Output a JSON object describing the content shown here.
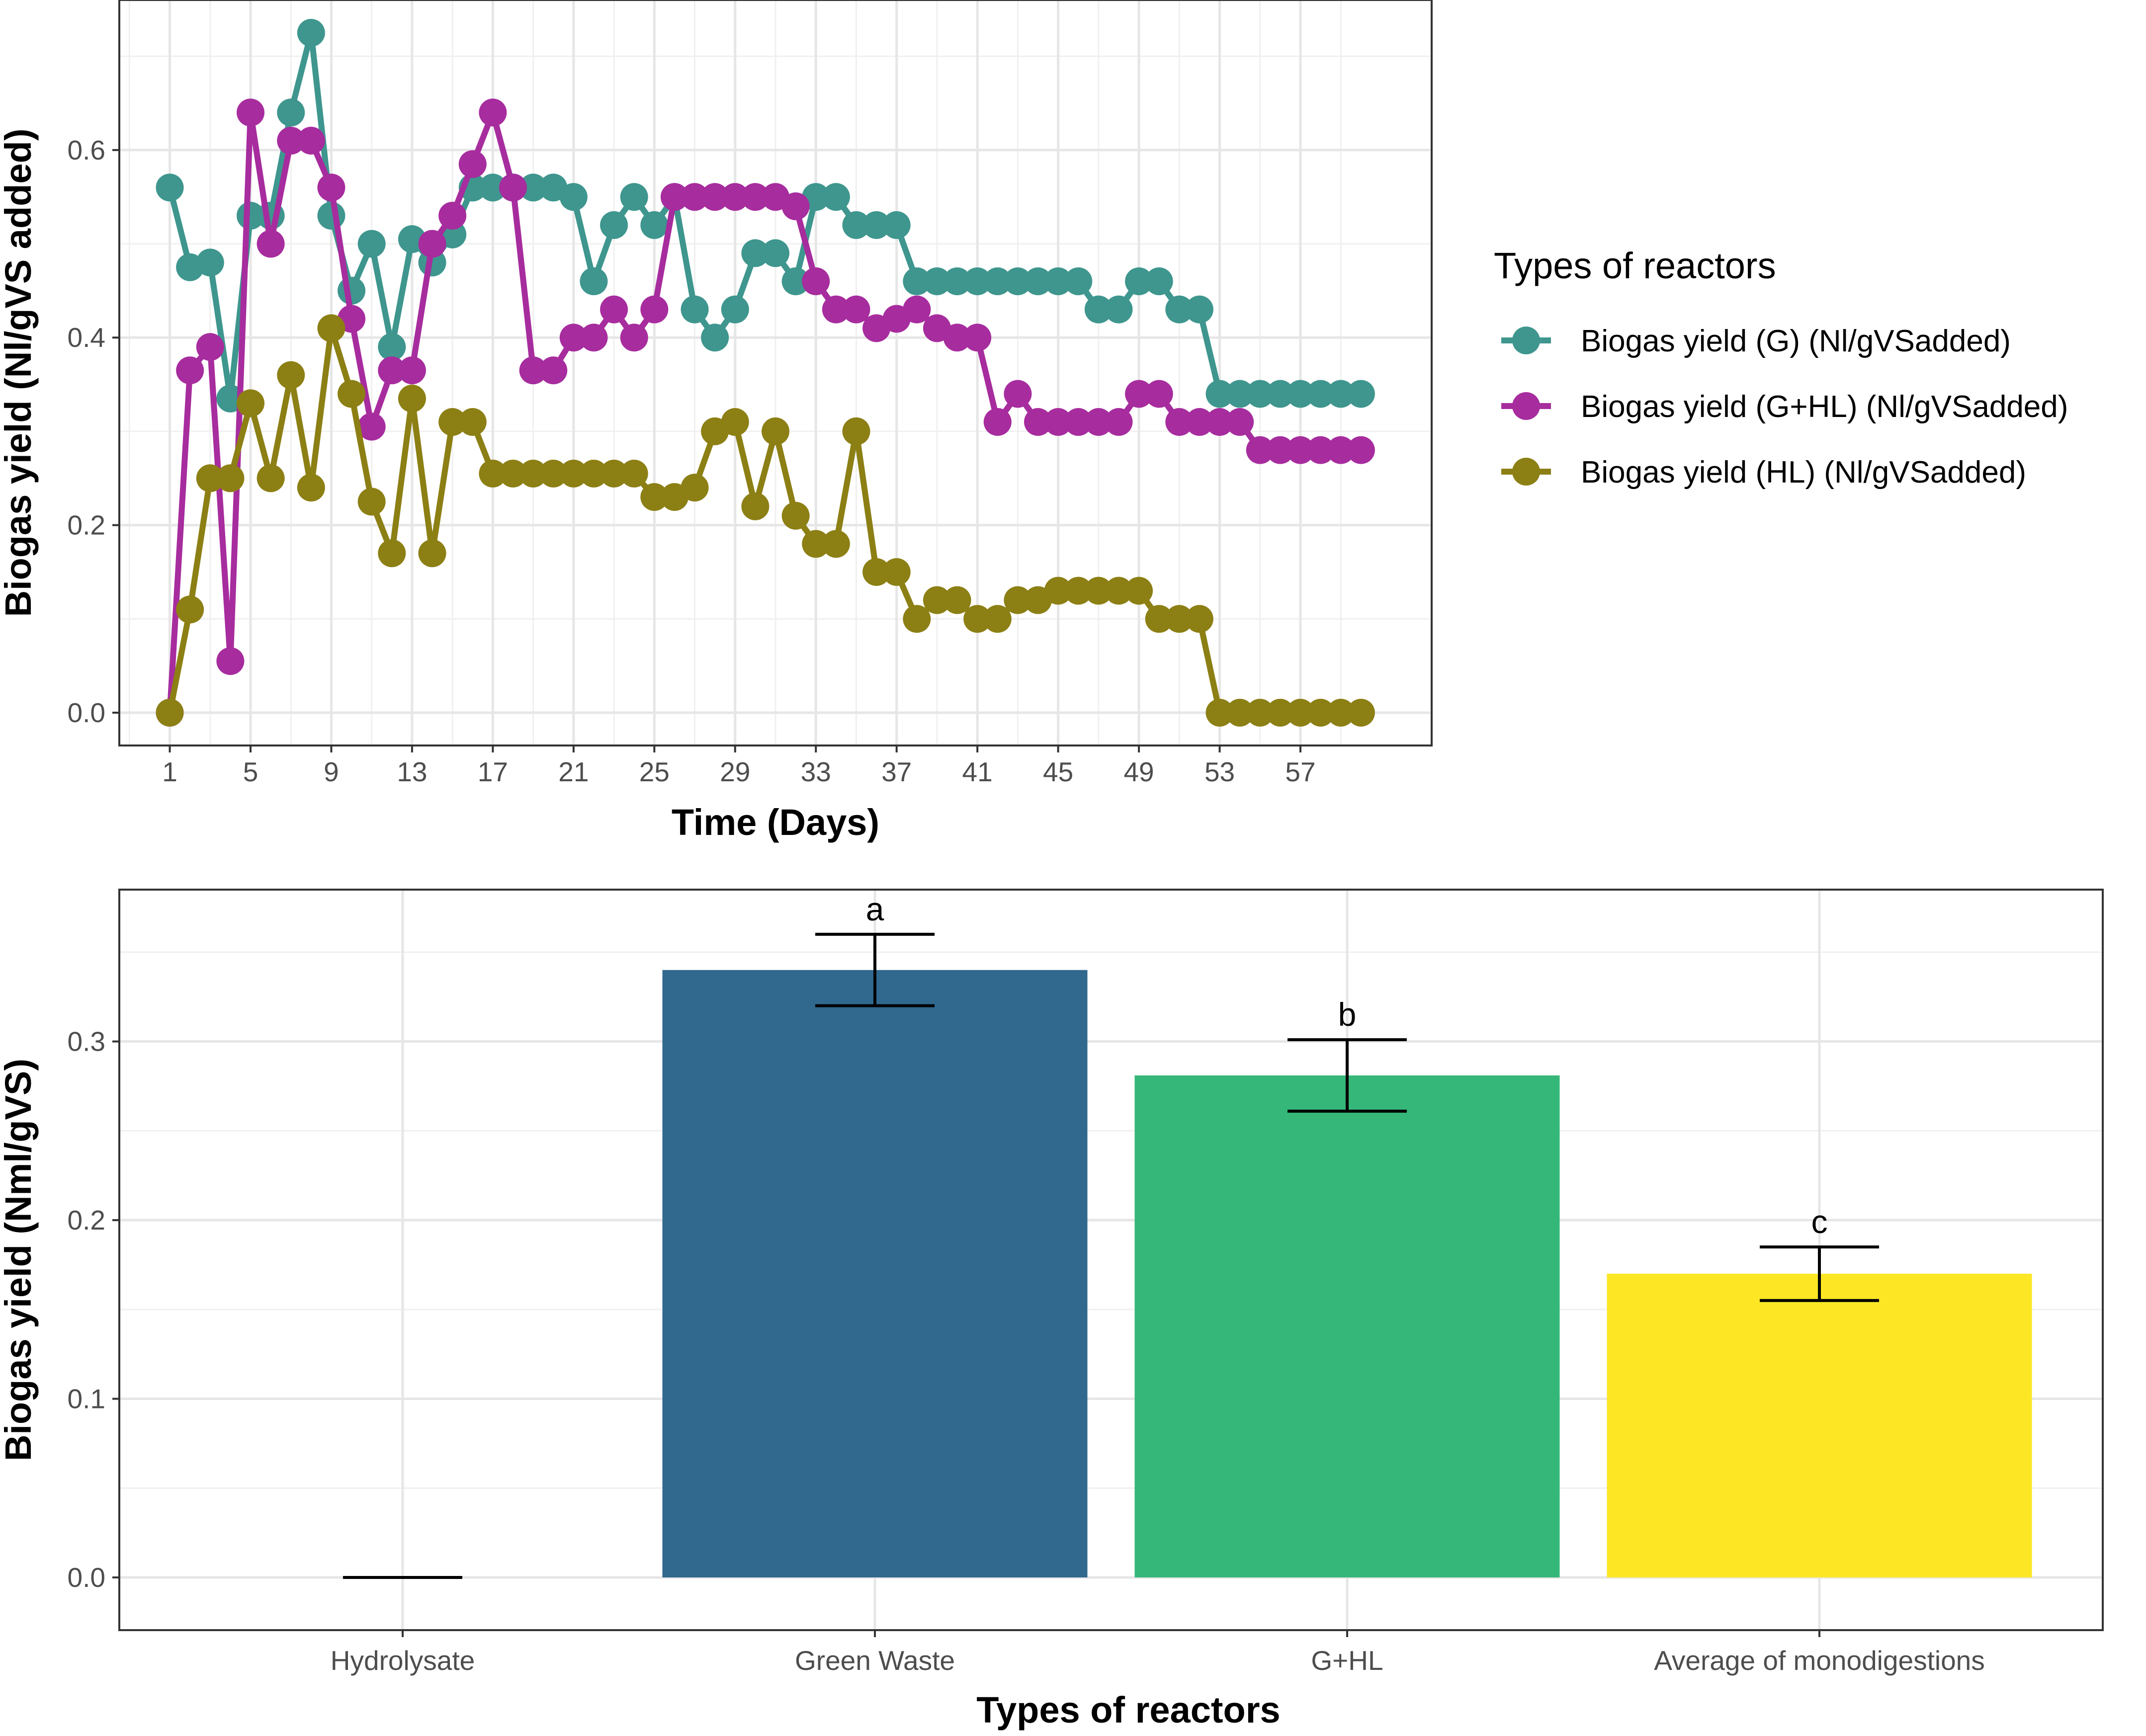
{
  "chart_data": [
    {
      "type": "line",
      "xlabel": "Time (Days)",
      "ylabel": "Biogas yield (Nl/gVS added)",
      "xlim": [
        -1.5,
        63.5
      ],
      "ylim": [
        -0.035,
        0.76
      ],
      "xticks": [
        1,
        5,
        9,
        13,
        17,
        21,
        25,
        29,
        33,
        37,
        41,
        45,
        49,
        53,
        57
      ],
      "yticks": [
        0.0,
        0.2,
        0.4,
        0.6
      ],
      "ytick_labels": [
        "0.0",
        "0.2",
        "0.4",
        "0.6"
      ],
      "grid": true,
      "legend": {
        "title": "Types of reactors",
        "position": "right"
      },
      "series": [
        {
          "name": "Biogas yield (G) (Nl/gVSadded)",
          "color": "#3E968E",
          "x": [
            1,
            2,
            3,
            4,
            5,
            6,
            7,
            8,
            9,
            10,
            11,
            12,
            13,
            14,
            15,
            16,
            17,
            18,
            19,
            20,
            21,
            22,
            23,
            24,
            25,
            26,
            27,
            28,
            29,
            30,
            31,
            32,
            33,
            34,
            35,
            36,
            37,
            38,
            39,
            40,
            41,
            42,
            43,
            44,
            45,
            46,
            47,
            48,
            49,
            50,
            51,
            52,
            53,
            54,
            55,
            56,
            57,
            58,
            59,
            60
          ],
          "values": [
            0.56,
            0.475,
            0.48,
            0.335,
            0.53,
            0.53,
            0.64,
            0.725,
            0.53,
            0.45,
            0.5,
            0.39,
            0.505,
            0.48,
            0.51,
            0.56,
            0.56,
            0.56,
            0.56,
            0.56,
            0.55,
            0.46,
            0.52,
            0.55,
            0.52,
            0.55,
            0.43,
            0.4,
            0.43,
            0.49,
            0.49,
            0.46,
            0.55,
            0.55,
            0.52,
            0.52,
            0.52,
            0.46,
            0.46,
            0.46,
            0.46,
            0.46,
            0.46,
            0.46,
            0.46,
            0.46,
            0.43,
            0.43,
            0.46,
            0.46,
            0.43,
            0.43,
            0.34,
            0.34,
            0.34,
            0.34,
            0.34,
            0.34,
            0.34,
            0.34
          ]
        },
        {
          "name": "Biogas yield (G+HL) (Nl/gVSadded)",
          "color": "#A72C9E",
          "x": [
            1,
            2,
            3,
            4,
            5,
            6,
            7,
            8,
            9,
            10,
            11,
            12,
            13,
            14,
            15,
            16,
            17,
            18,
            19,
            20,
            21,
            22,
            23,
            24,
            25,
            26,
            27,
            28,
            29,
            30,
            31,
            32,
            33,
            34,
            35,
            36,
            37,
            38,
            39,
            40,
            41,
            42,
            43,
            44,
            45,
            46,
            47,
            48,
            49,
            50,
            51,
            52,
            53,
            54,
            55,
            56,
            57,
            58,
            59,
            60
          ],
          "values": [
            0.0,
            0.365,
            0.39,
            0.055,
            0.64,
            0.5,
            0.61,
            0.61,
            0.56,
            0.42,
            0.305,
            0.365,
            0.365,
            0.5,
            0.53,
            0.585,
            0.64,
            0.56,
            0.365,
            0.365,
            0.4,
            0.4,
            0.43,
            0.4,
            0.43,
            0.55,
            0.55,
            0.55,
            0.55,
            0.55,
            0.55,
            0.54,
            0.46,
            0.43,
            0.43,
            0.41,
            0.42,
            0.43,
            0.41,
            0.4,
            0.4,
            0.31,
            0.34,
            0.31,
            0.31,
            0.31,
            0.31,
            0.31,
            0.34,
            0.34,
            0.31,
            0.31,
            0.31,
            0.31,
            0.28,
            0.28,
            0.28,
            0.28,
            0.28,
            0.28
          ]
        },
        {
          "name": "Biogas yield (HL) (Nl/gVSadded)",
          "color": "#8C7F14",
          "x": [
            1,
            2,
            3,
            4,
            5,
            6,
            7,
            8,
            9,
            10,
            11,
            12,
            13,
            14,
            15,
            16,
            17,
            18,
            19,
            20,
            21,
            22,
            23,
            24,
            25,
            26,
            27,
            28,
            29,
            30,
            31,
            32,
            33,
            34,
            35,
            36,
            37,
            38,
            39,
            40,
            41,
            42,
            43,
            44,
            45,
            46,
            47,
            48,
            49,
            50,
            51,
            52,
            53,
            54,
            55,
            56,
            57,
            58,
            59,
            60
          ],
          "values": [
            0.0,
            0.11,
            0.25,
            0.25,
            0.33,
            0.25,
            0.36,
            0.24,
            0.41,
            0.34,
            0.225,
            0.17,
            0.335,
            0.17,
            0.31,
            0.31,
            0.255,
            0.255,
            0.255,
            0.255,
            0.255,
            0.255,
            0.255,
            0.255,
            0.23,
            0.23,
            0.24,
            0.3,
            0.31,
            0.22,
            0.3,
            0.21,
            0.18,
            0.18,
            0.3,
            0.15,
            0.15,
            0.1,
            0.12,
            0.12,
            0.1,
            0.1,
            0.12,
            0.12,
            0.13,
            0.13,
            0.13,
            0.13,
            0.13,
            0.1,
            0.1,
            0.1,
            0.0,
            0.0,
            0.0,
            0.0,
            0.0,
            0.0,
            0.0,
            0.0
          ]
        }
      ]
    },
    {
      "type": "bar",
      "xlabel": "Types of reactors",
      "ylabel": "Biogas yield (Nml/gVS)",
      "ylim": [
        -0.0295,
        0.385
      ],
      "yticks": [
        0.0,
        0.1,
        0.2,
        0.3
      ],
      "ytick_labels": [
        "0.0",
        "0.1",
        "0.2",
        "0.3"
      ],
      "grid": true,
      "categories": [
        "Hydrolysate",
        "Green Waste",
        "G+HL",
        "Average of monodigestions"
      ],
      "values": [
        0.0,
        0.34,
        0.281,
        0.17
      ],
      "error": [
        0.0,
        0.02,
        0.02,
        0.015
      ],
      "significance": [
        "",
        "a",
        "b",
        "c"
      ],
      "colors": [
        "#440154",
        "#31688E",
        "#35B779",
        "#FDE725"
      ]
    }
  ]
}
